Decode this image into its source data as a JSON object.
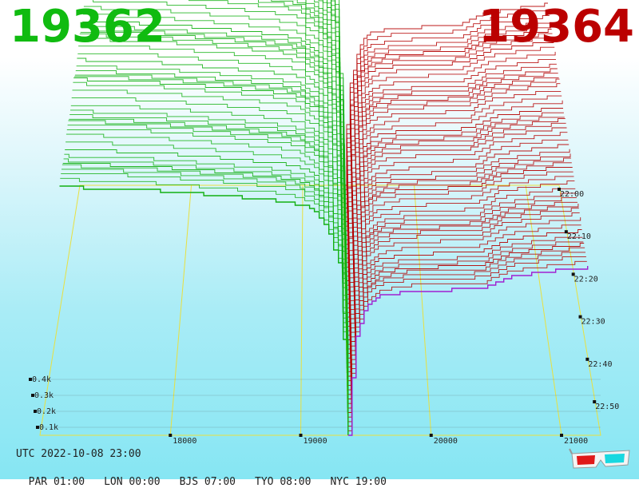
{
  "header": {
    "bid_price": "19362",
    "ask_price": "19364",
    "bid_color": "#10bb10",
    "ask_color": "#bb0000"
  },
  "footer": {
    "utc": "UTC 2022-10-08 23:00",
    "zones": [
      "PAR 01:00",
      "LON 00:00",
      "BJS 07:00",
      "TYO 08:00",
      "NYC 19:00"
    ],
    "icon": "3d-glasses-icon"
  },
  "chart_data": {
    "type": "area",
    "title": "",
    "xlabel": "",
    "ylabel": "",
    "x_ticks": [
      "18000",
      "19000",
      "20000",
      "21000"
    ],
    "x_tick_values": [
      18000,
      19000,
      20000,
      21000
    ],
    "depth_ticks": [
      "0.1k",
      "0.2k",
      "0.3k",
      "0.4k"
    ],
    "depth_tick_values": [
      100,
      200,
      300,
      400
    ],
    "time_ticks": [
      "22:00",
      "22:10",
      "22:20",
      "22:30",
      "22:40",
      "22:50"
    ],
    "xlim": [
      17000,
      21300
    ],
    "mid_price": 19363,
    "snapshot_count": 56,
    "grid": true,
    "series": [
      {
        "side": "bid",
        "color": "#12b012",
        "price": [
          17000,
          17200,
          17400,
          17600,
          17800,
          18000,
          18200,
          18400,
          18600,
          18800,
          18900,
          19000,
          19100,
          19200,
          19300,
          19362
        ],
        "cumulative_volume": [
          520,
          518,
          516,
          514,
          512,
          508,
          504,
          500,
          495,
          490,
          486,
          480,
          470,
          430,
          350,
          0
        ]
      },
      {
        "side": "ask",
        "color": "#b50000",
        "price": [
          19364,
          19380,
          19420,
          19500,
          19600,
          19800,
          20000,
          20200,
          20400,
          20600,
          20800,
          21000,
          21200,
          21300
        ],
        "cumulative_volume": [
          0,
          80,
          200,
          270,
          290,
          300,
          302,
          304,
          306,
          330,
          338,
          345,
          350,
          352
        ]
      }
    ]
  }
}
